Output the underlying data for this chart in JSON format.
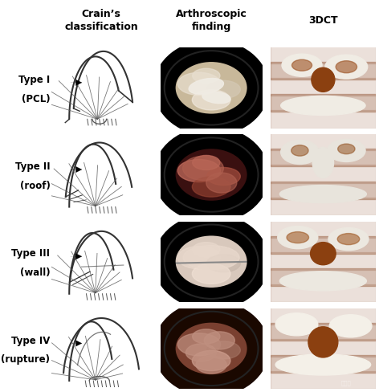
{
  "title_col1": "Crain’s\nclassification",
  "title_col2": "Arthroscopic\nfinding",
  "title_col3": "3DCT",
  "rows": [
    {
      "label_line1": "Type I",
      "label_line2": "(PCL)"
    },
    {
      "label_line1": "Type II",
      "label_line2": "(roof)"
    },
    {
      "label_line1": "Type III",
      "label_line2": "(wall)"
    },
    {
      "label_line1": "Type IV",
      "label_line2": "(rupture)"
    }
  ],
  "bg_color": "#ffffff",
  "arthro_colors": [
    {
      "outer": "#000000",
      "circle_fill": "#c8b89a",
      "tissue1": "#e8dfd0",
      "tissue2": "#d4c8b4",
      "tissue3": "#f0e8dc"
    },
    {
      "outer": "#000000",
      "circle_fill": "#3a1010",
      "tissue1": "#c87060",
      "tissue2": "#a85040",
      "tissue3": "#904030"
    },
    {
      "outer": "#000000",
      "circle_fill": "#d8c8bc",
      "tissue1": "#e8d8cc",
      "tissue2": "#c8b8ac",
      "tissue3": "#f0e0d4"
    },
    {
      "outer": "#1a0800",
      "circle_fill": "#7a4030",
      "tissue1": "#c09080",
      "tissue2": "#a07060",
      "tissue3": "#d0a090"
    }
  ],
  "ct_bg": "#8b4010",
  "ct_bone_colors": [
    "#f0ece4",
    "#e8e4dc",
    "#ece8e0",
    "#f4f0e8"
  ],
  "sketch_color": "#555555",
  "sketch_outline": "#333333",
  "label_color": "#000000",
  "figsize": [
    4.72,
    4.89
  ],
  "dpi": 100
}
